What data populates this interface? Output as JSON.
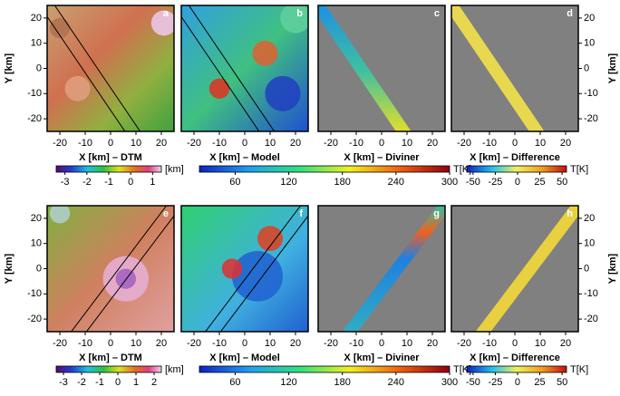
{
  "panels": [
    {
      "label": "a",
      "x_label": "X [km] – DTM"
    },
    {
      "label": "b",
      "x_label": "X [km] – Model"
    },
    {
      "label": "c",
      "x_label": "X [km] – Diviner"
    },
    {
      "label": "d",
      "x_label": "X [km] – Difference"
    },
    {
      "label": "e",
      "x_label": "X [km] – DTM"
    },
    {
      "label": "f",
      "x_label": "X [km] – Model"
    },
    {
      "label": "g",
      "x_label": "X [km] – Diviner"
    },
    {
      "label": "h",
      "x_label": "X [km] – Difference"
    }
  ],
  "xlim": [
    -25,
    25
  ],
  "ylim": [
    -25,
    25
  ],
  "xticks": [
    -20,
    -10,
    0,
    10,
    20
  ],
  "yticks": [
    -20,
    -10,
    0,
    10,
    20
  ],
  "y_label": "Y [km]",
  "colorbars": [
    {
      "lim": [
        -3.4,
        1.4
      ],
      "ticks": [
        -3,
        -2,
        -1,
        0,
        1
      ],
      "unit": "[km]"
    },
    {
      "lim": [
        20,
        300
      ],
      "ticks": [
        60,
        120,
        180,
        240,
        300
      ],
      "unit": "T[K]"
    },
    {
      "lim": [
        -57,
        55
      ],
      "ticks": [
        -50,
        -25,
        0,
        25,
        50
      ],
      "unit": "T[K]"
    },
    {
      "lim": [
        -3.4,
        2.4
      ],
      "ticks": [
        -3,
        -2,
        -1,
        0,
        1,
        2
      ],
      "unit": "[km]"
    },
    {
      "lim": [
        20,
        300
      ],
      "ticks": [
        60,
        120,
        180,
        240,
        300
      ],
      "unit": "T[K]"
    },
    {
      "lim": [
        -57,
        55
      ],
      "ticks": [
        -50,
        -25,
        0,
        25,
        50
      ],
      "unit": "T[K]"
    }
  ]
}
